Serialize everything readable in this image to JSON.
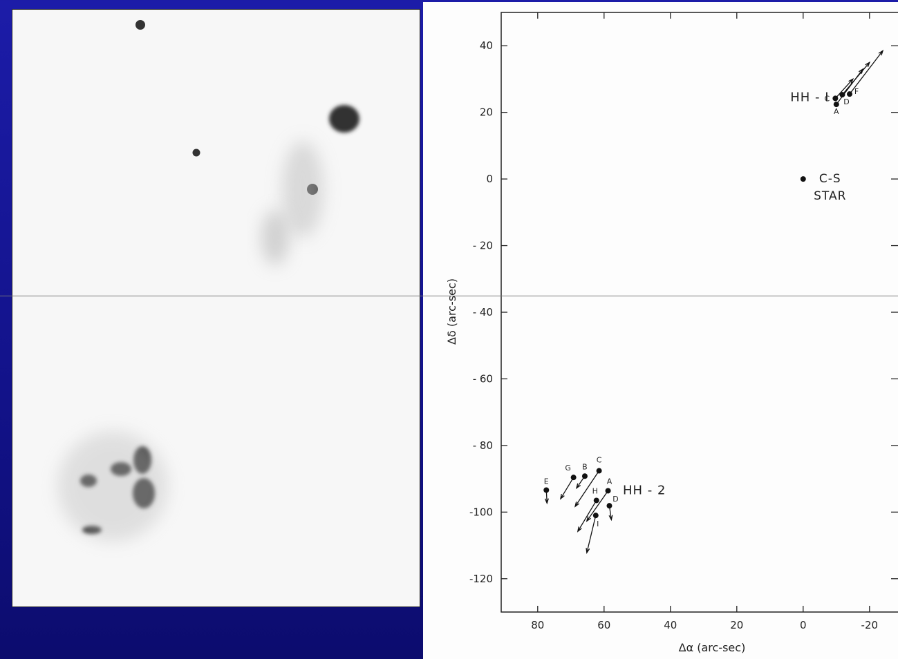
{
  "chart_data": {
    "type": "scatter",
    "xlabel": "Δα  (arc-sec)",
    "ylabel": "Δδ  (arc-sec)",
    "xlim": [
      91,
      -29
    ],
    "ylim": [
      -130,
      50
    ],
    "xticks": [
      80,
      60,
      40,
      20,
      0,
      -20
    ],
    "yticks": [
      40,
      20,
      0,
      {
        "value": -20,
        "label": "- 20"
      },
      {
        "value": -40,
        "label": "- 40"
      },
      {
        "value": -60,
        "label": "- 60"
      },
      {
        "value": -80,
        "label": "- 80"
      },
      -100,
      -120
    ],
    "series": [
      {
        "name": "HH - I",
        "color": "#111111",
        "labels": [
          "C",
          "A",
          "D",
          "F"
        ],
        "x": [
          -9.7,
          -10,
          -11.8,
          -14
        ],
        "y": [
          24.2,
          22.4,
          25.3,
          25.5
        ],
        "tip_x": [
          -15,
          -18,
          -20,
          -24
        ],
        "tip_y": [
          30,
          33,
          35,
          38.5
        ]
      },
      {
        "name": "HH - 2",
        "color": "#111111",
        "labels": [
          "E",
          "G",
          "B",
          "C",
          "H",
          "A",
          "D",
          "I"
        ],
        "x": [
          77.4,
          69.2,
          65.8,
          61.5,
          62.3,
          58.8,
          58.4,
          62.5
        ],
        "y": [
          -93.4,
          -89.6,
          -89.2,
          -87.6,
          -96.5,
          -93.6,
          -98.1,
          -101
        ],
        "tip_x": [
          77.2,
          73.1,
          68.3,
          68.7,
          67.9,
          65.2,
          57.8,
          65.2
        ],
        "tip_y": [
          -97.3,
          -96,
          -92.8,
          -98.3,
          -105.8,
          -102.7,
          -102.3,
          -112.2
        ]
      },
      {
        "name": "C-S STAR",
        "color": "#111111",
        "x": [
          0
        ],
        "y": [
          0
        ]
      }
    ]
  }
}
